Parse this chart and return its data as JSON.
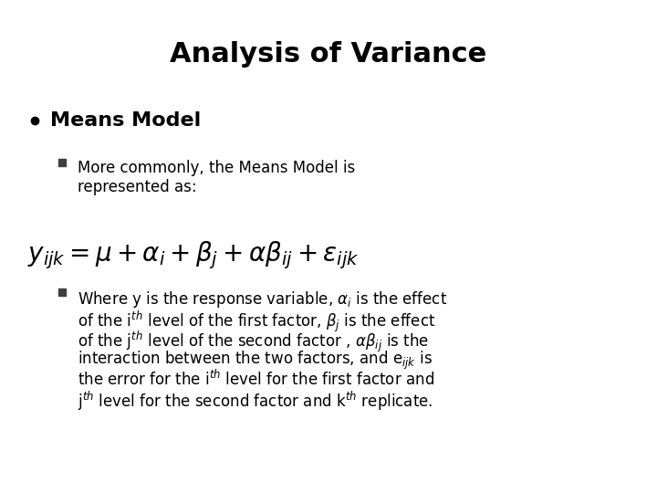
{
  "title": "Analysis of Variance",
  "title_fontsize": 22,
  "title_fontweight": "bold",
  "bg_color": "#ffffff",
  "text_color": "#000000",
  "bullet1_text": "Means Model",
  "bullet1_fontsize": 16,
  "bullet1_fontweight": "bold",
  "sub_bullet_fontsize": 12,
  "equation_fontsize": 20,
  "body_fontsize": 12,
  "square_bullet_color": "#404040"
}
